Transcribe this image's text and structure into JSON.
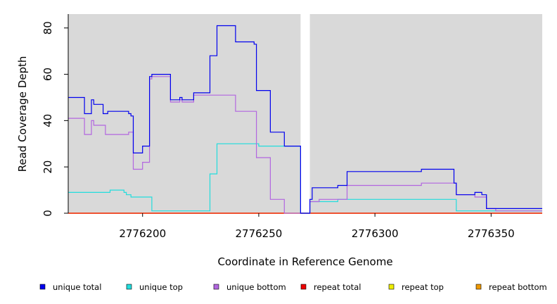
{
  "chart_data": {
    "type": "line",
    "title": "",
    "xlabel": "Coordinate in Reference Genome",
    "ylabel": "Read Coverage Depth",
    "xlim": [
      2776168,
      2776372
    ],
    "ylim": [
      0,
      86
    ],
    "x_ticks": [
      {
        "value": 2776200,
        "label": "2776200"
      },
      {
        "value": 2776250,
        "label": "2776250"
      },
      {
        "value": 2776300,
        "label": "2776300"
      },
      {
        "value": 2776350,
        "label": "2776350"
      }
    ],
    "y_ticks": [
      {
        "value": 0,
        "label": "0"
      },
      {
        "value": 20,
        "label": "20"
      },
      {
        "value": 40,
        "label": "40"
      },
      {
        "value": 60,
        "label": "60"
      },
      {
        "value": 80,
        "label": "80"
      }
    ],
    "background_color": "#d9d9d9",
    "gap": [
      2776268,
      2776272
    ],
    "series": [
      {
        "name": "unique total",
        "color": "#0000ee",
        "x": [
          2776168,
          2776175,
          2776177,
          2776178,
          2776179,
          2776183,
          2776185,
          2776194,
          2776195,
          2776196,
          2776200,
          2776203,
          2776204,
          2776206,
          2776212,
          2776216,
          2776217,
          2776222,
          2776229,
          2776232,
          2776240,
          2776248,
          2776249,
          2776255,
          2776261,
          2776268,
          2776272,
          2776273,
          2776284,
          2776288,
          2776320,
          2776334,
          2776335,
          2776343,
          2776346,
          2776348,
          2776372
        ],
        "y": [
          50,
          43,
          43,
          49,
          47,
          43,
          44,
          43,
          42,
          26,
          29,
          59,
          60,
          60,
          49,
          50,
          49,
          52,
          68,
          81,
          74,
          73,
          53,
          35,
          29,
          0,
          6,
          11,
          12,
          18,
          19,
          13,
          8,
          9,
          8,
          2,
          2
        ]
      },
      {
        "name": "unique top",
        "color": "#22dddd",
        "x": [
          2776168,
          2776186,
          2776192,
          2776193,
          2776195,
          2776204,
          2776229,
          2776232,
          2776250,
          2776268,
          2776272,
          2776276,
          2776284,
          2776288,
          2776334,
          2776335,
          2776352,
          2776372
        ],
        "y": [
          9,
          10,
          9,
          8,
          7,
          1,
          17,
          30,
          29,
          0,
          5,
          5,
          6,
          6,
          6,
          1,
          1,
          1
        ]
      },
      {
        "name": "unique bottom",
        "color": "#b266e0",
        "x": [
          2776168,
          2776175,
          2776178,
          2776179,
          2776184,
          2776194,
          2776196,
          2776200,
          2776203,
          2776204,
          2776212,
          2776216,
          2776217,
          2776222,
          2776232,
          2776240,
          2776249,
          2776255,
          2776261,
          2776267,
          2776272,
          2776276,
          2776288,
          2776320,
          2776334,
          2776335,
          2776343,
          2776348,
          2776352,
          2776372
        ],
        "y": [
          41,
          34,
          40,
          38,
          34,
          35,
          19,
          22,
          58,
          59,
          48,
          49,
          48,
          51,
          51,
          44,
          24,
          6,
          0,
          0,
          5,
          6,
          12,
          13,
          13,
          8,
          7,
          2,
          1,
          1
        ]
      },
      {
        "name": "repeat total",
        "color": "#ee0000",
        "x": [
          2776168,
          2776372
        ],
        "y": [
          0,
          0
        ]
      },
      {
        "name": "repeat top",
        "color": "#eeee00",
        "x": [
          2776168,
          2776372
        ],
        "y": [
          0,
          0
        ]
      },
      {
        "name": "repeat bottom",
        "color": "#ee9900",
        "x": [
          2776168,
          2776372
        ],
        "y": [
          0,
          0
        ]
      }
    ],
    "legend_position": "bottom"
  }
}
